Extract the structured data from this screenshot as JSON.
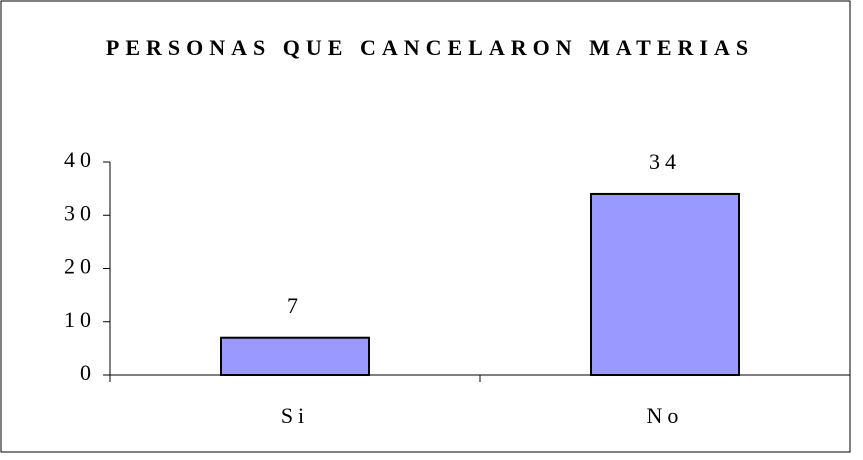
{
  "chart_data": {
    "type": "bar",
    "title": "PERSONAS QUE CANCELARON MATERIAS",
    "categories": [
      "Si",
      "No"
    ],
    "values": [
      7,
      34
    ],
    "color": "#9999ff",
    "ylim": [
      0,
      40
    ],
    "yticks": [
      0,
      10,
      20,
      30,
      40
    ],
    "grid": false
  }
}
